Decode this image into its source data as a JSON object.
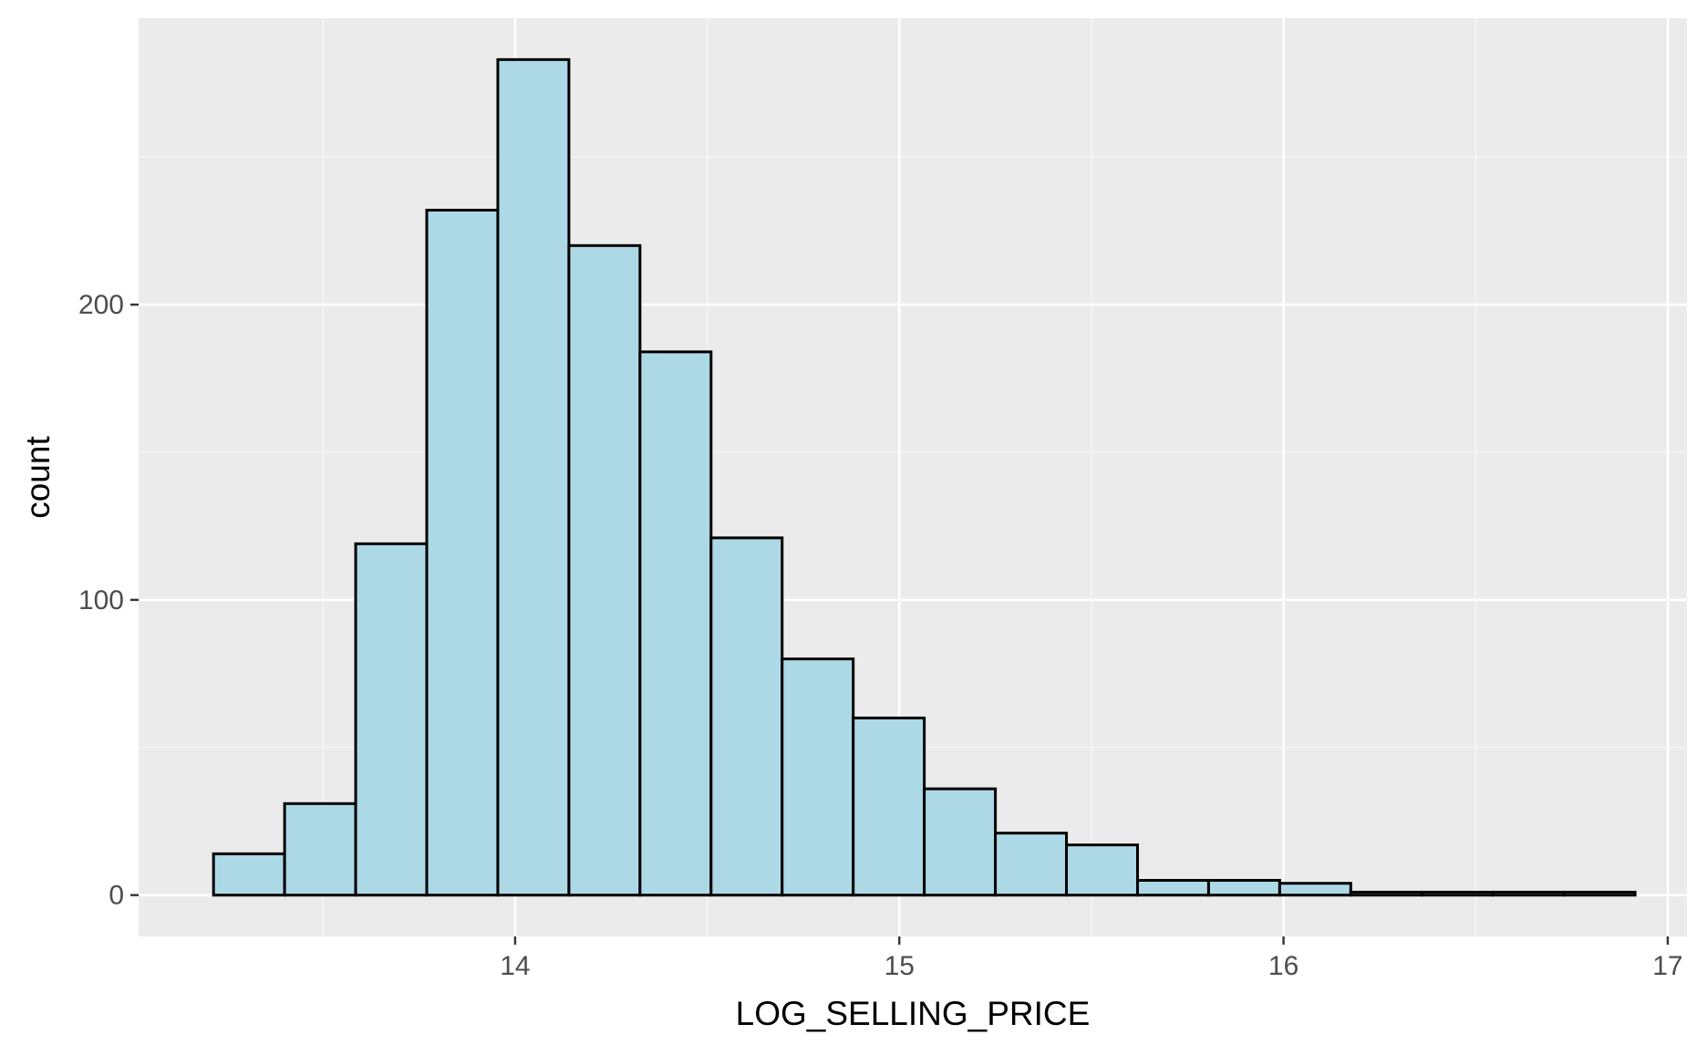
{
  "chart_data": {
    "type": "bar",
    "subtype": "histogram",
    "title": "",
    "xlabel": "LOG_SELLING_PRICE",
    "ylabel": "count",
    "xlim": [
      13.02,
      17.05
    ],
    "ylim": [
      -14,
      297
    ],
    "x_ticks": [
      14,
      15,
      16,
      17
    ],
    "x_tick_labels": [
      "14",
      "15",
      "16",
      "17"
    ],
    "x_minor_ticks": [
      13.5,
      14.5,
      15.5,
      16.5
    ],
    "y_ticks": [
      0,
      100,
      200
    ],
    "y_tick_labels": [
      "0",
      "100",
      "200"
    ],
    "y_minor_ticks": [
      50,
      150,
      250
    ],
    "bin_width": 0.185,
    "bins": [
      {
        "x0": 13.215,
        "x1": 13.4,
        "count": 14
      },
      {
        "x0": 13.4,
        "x1": 13.585,
        "count": 31
      },
      {
        "x0": 13.585,
        "x1": 13.77,
        "count": 119
      },
      {
        "x0": 13.77,
        "x1": 13.955,
        "count": 232
      },
      {
        "x0": 13.955,
        "x1": 14.14,
        "count": 283
      },
      {
        "x0": 14.14,
        "x1": 14.325,
        "count": 220
      },
      {
        "x0": 14.325,
        "x1": 14.51,
        "count": 184
      },
      {
        "x0": 14.51,
        "x1": 14.695,
        "count": 121
      },
      {
        "x0": 14.695,
        "x1": 14.88,
        "count": 80
      },
      {
        "x0": 14.88,
        "x1": 15.065,
        "count": 60
      },
      {
        "x0": 15.065,
        "x1": 15.25,
        "count": 36
      },
      {
        "x0": 15.25,
        "x1": 15.435,
        "count": 21
      },
      {
        "x0": 15.435,
        "x1": 15.62,
        "count": 17
      },
      {
        "x0": 15.62,
        "x1": 15.805,
        "count": 5
      },
      {
        "x0": 15.805,
        "x1": 15.99,
        "count": 5
      },
      {
        "x0": 15.99,
        "x1": 16.175,
        "count": 4
      },
      {
        "x0": 16.175,
        "x1": 16.36,
        "count": 1
      },
      {
        "x0": 16.36,
        "x1": 16.545,
        "count": 1
      },
      {
        "x0": 16.545,
        "x1": 16.73,
        "count": 1
      },
      {
        "x0": 16.73,
        "x1": 16.915,
        "count": 1
      }
    ],
    "grid": true,
    "legend": "none",
    "colors": {
      "panel_background": "#ebebeb",
      "grid_major": "#ffffff",
      "grid_minor": "#f7f7f7",
      "bar_fill": "#add8e6",
      "bar_outline": "#000000",
      "tick_mark": "#333333"
    }
  }
}
